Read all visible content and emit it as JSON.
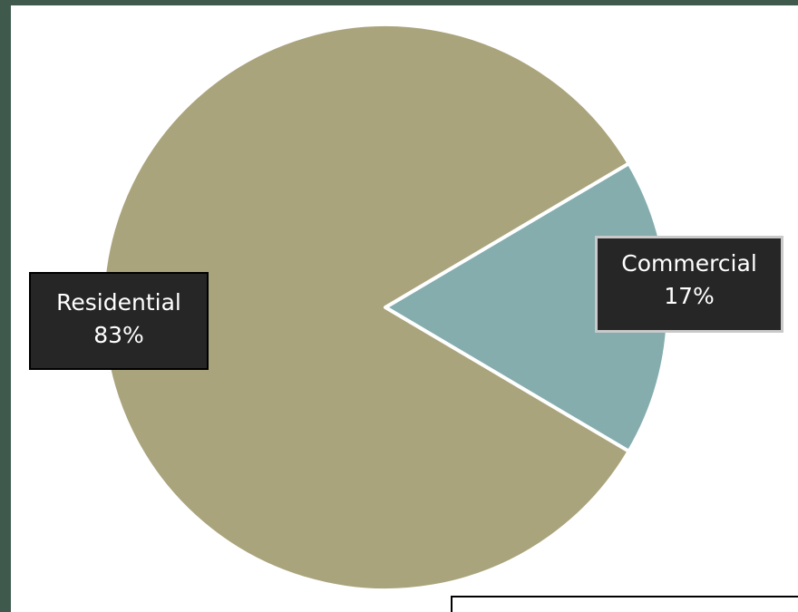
{
  "chart_data": {
    "type": "pie",
    "slices": [
      {
        "label": "Residential",
        "value": 83,
        "display": "83%",
        "color": "#a9a47c"
      },
      {
        "label": "Commercial",
        "value": 17,
        "display": "17%",
        "color": "#85adae"
      }
    ],
    "separator_color": "#ffffff",
    "label_box_color": "#262626",
    "label_text_color": "#ffffff"
  },
  "page": {
    "background_color": "#3f5a4c",
    "plot_background_color": "#ffffff"
  }
}
